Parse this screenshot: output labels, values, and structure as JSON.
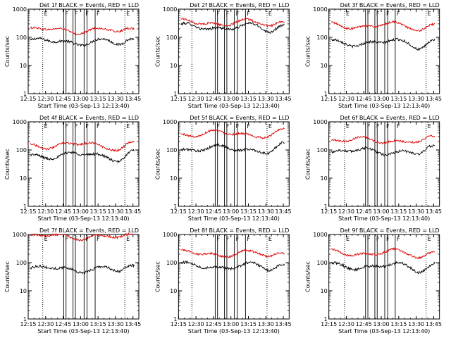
{
  "chart_data": [
    {
      "type": "line",
      "title": "Det 1f BLACK = Events, RED = LLD",
      "xlabel": "Start Time (03-Sep-13 12:13:40)",
      "ylabel": "Counts/sec",
      "yscale": "log",
      "ylim": [
        1,
        1000
      ],
      "xlim": [
        "12:15",
        "13:50"
      ],
      "x_ticks": [
        "12:15",
        "12:30",
        "12:45",
        "13:00",
        "13:15",
        "13:30",
        "13:45"
      ],
      "y_ticks": [
        "1",
        "10",
        "100",
        "1000"
      ],
      "series": [
        {
          "name": "Events",
          "color": "#000000",
          "level": 70
        },
        {
          "name": "LLD",
          "color": "#dd0000",
          "level": 180
        }
      ],
      "markers": [
        {
          "label": "E",
          "minute": 12.5,
          "style": "dotted"
        },
        {
          "label": "F",
          "minute": 30.5,
          "style": "solid"
        },
        {
          "label": "",
          "minute": 32.5,
          "style": "solid"
        },
        {
          "label": "F",
          "minute": 38.5,
          "style": "solid"
        },
        {
          "label": "",
          "minute": 40.5,
          "style": "solid"
        },
        {
          "label": "F",
          "minute": 48.0,
          "style": "solid"
        },
        {
          "label": "",
          "minute": 50.5,
          "style": "solid"
        },
        {
          "label": "F",
          "minute": 57.5,
          "style": "solid"
        },
        {
          "label": "E",
          "minute": 83.0,
          "style": "dotted"
        }
      ]
    },
    {
      "type": "line",
      "title": "Det 2f BLACK = Events, RED = LLD",
      "xlabel": "Start Time (03-Sep-13 12:13:40)",
      "ylabel": "Counts/sec",
      "yscale": "log",
      "ylim": [
        1,
        1000
      ],
      "xlim": [
        "12:15",
        "13:50"
      ],
      "x_ticks": [
        "12:15",
        "12:30",
        "12:45",
        "13:00",
        "13:15",
        "13:30",
        "13:45"
      ],
      "y_ticks": [
        "1",
        "10",
        "100",
        "1000"
      ],
      "series": [
        {
          "name": "Events",
          "color": "#000000",
          "level": 230
        },
        {
          "name": "LLD",
          "color": "#dd0000",
          "level": 330
        }
      ],
      "markers": [
        {
          "label": "",
          "minute": 11.5,
          "style": "dotted"
        },
        {
          "label": "F",
          "minute": 31.5,
          "style": "solid"
        },
        {
          "label": "",
          "minute": 33.5,
          "style": "solid"
        },
        {
          "label": "F",
          "minute": 39.5,
          "style": "solid"
        },
        {
          "label": "",
          "minute": 41.5,
          "style": "solid"
        },
        {
          "label": "F",
          "minute": 48.0,
          "style": "solid"
        },
        {
          "label": "",
          "minute": 50.5,
          "style": "solid"
        },
        {
          "label": "F",
          "minute": 57.5,
          "style": "solid"
        },
        {
          "label": "E",
          "minute": 76.0,
          "style": "dotted"
        }
      ]
    },
    {
      "type": "line",
      "title": "Det 3f BLACK = Events, RED = LLD",
      "xlabel": "Start Time (03-Sep-13 12:13:40)",
      "ylabel": "Counts/sec",
      "yscale": "log",
      "ylim": [
        1,
        1000
      ],
      "xlim": [
        "12:15",
        "13:50"
      ],
      "x_ticks": [
        "12:15",
        "12:30",
        "12:45",
        "13:00",
        "13:15",
        "13:30",
        "13:45"
      ],
      "y_ticks": [
        "1",
        "10",
        "100",
        "1000"
      ],
      "series": [
        {
          "name": "Events",
          "color": "#000000",
          "level": 65
        },
        {
          "name": "LLD",
          "color": "#dd0000",
          "level": 260
        }
      ],
      "markers": [
        {
          "label": "E",
          "minute": 13.5,
          "style": "dotted"
        },
        {
          "label": "F",
          "minute": 31.5,
          "style": "solid"
        },
        {
          "label": "",
          "minute": 33.5,
          "style": "solid"
        },
        {
          "label": "F",
          "minute": 39.5,
          "style": "solid"
        },
        {
          "label": "",
          "minute": 41.5,
          "style": "solid"
        },
        {
          "label": "F",
          "minute": 48.0,
          "style": "solid"
        },
        {
          "label": "",
          "minute": 50.5,
          "style": "solid"
        },
        {
          "label": "F",
          "minute": 57.0,
          "style": "solid"
        },
        {
          "label": "E",
          "minute": 83.5,
          "style": "dotted"
        }
      ]
    },
    {
      "type": "line",
      "title": "Det 4f BLACK = Events, RED = LLD",
      "xlabel": "Start Time (03-Sep-13 12:13:40)",
      "ylabel": "Counts/sec",
      "yscale": "log",
      "ylim": [
        1,
        1000
      ],
      "xlim": [
        "12:15",
        "13:50"
      ],
      "x_ticks": [
        "12:15",
        "12:30",
        "12:45",
        "13:00",
        "13:15",
        "13:30",
        "13:45"
      ],
      "y_ticks": [
        "1",
        "10",
        "100",
        "1000"
      ],
      "series": [
        {
          "name": "Events",
          "color": "#000000",
          "level": 65
        },
        {
          "name": "LLD",
          "color": "#dd0000",
          "level": 150
        }
      ],
      "markers": [
        {
          "label": "E",
          "minute": 12.5,
          "style": "dotted"
        },
        {
          "label": "F",
          "minute": 30.5,
          "style": "solid"
        },
        {
          "label": "",
          "minute": 32.5,
          "style": "solid"
        },
        {
          "label": "F",
          "minute": 38.5,
          "style": "solid"
        },
        {
          "label": "",
          "minute": 40.5,
          "style": "solid"
        },
        {
          "label": "F",
          "minute": 48.0,
          "style": "solid"
        },
        {
          "label": "",
          "minute": 50.5,
          "style": "solid"
        },
        {
          "label": "F",
          "minute": 57.5,
          "style": "solid"
        },
        {
          "label": "E",
          "minute": 83.0,
          "style": "dotted"
        }
      ]
    },
    {
      "type": "line",
      "title": "Det 5f BLACK = Events, RED = LLD",
      "xlabel": "Start Time (03-Sep-13 12:13:40)",
      "ylabel": "Counts/sec",
      "yscale": "log",
      "ylim": [
        1,
        1000
      ],
      "xlim": [
        "12:15",
        "13:50"
      ],
      "x_ticks": [
        "12:15",
        "12:30",
        "12:45",
        "13:00",
        "13:15",
        "13:30",
        "13:45"
      ],
      "y_ticks": [
        "1",
        "10",
        "100",
        "1000"
      ],
      "series": [
        {
          "name": "Events",
          "color": "#000000",
          "level": 110
        },
        {
          "name": "LLD",
          "color": "#dd0000",
          "level": 380
        }
      ],
      "markers": [
        {
          "label": "",
          "minute": 11.5,
          "style": "dotted"
        },
        {
          "label": "F",
          "minute": 31.5,
          "style": "solid"
        },
        {
          "label": "",
          "minute": 33.5,
          "style": "solid"
        },
        {
          "label": "F",
          "minute": 39.5,
          "style": "solid"
        },
        {
          "label": "",
          "minute": 41.5,
          "style": "solid"
        },
        {
          "label": "F",
          "minute": 48.0,
          "style": "solid"
        },
        {
          "label": "",
          "minute": 50.5,
          "style": "solid"
        },
        {
          "label": "F",
          "minute": 57.5,
          "style": "solid"
        },
        {
          "label": "E",
          "minute": 76.0,
          "style": "dotted"
        }
      ]
    },
    {
      "type": "line",
      "title": "Det 6f BLACK = Events, RED = LLD",
      "xlabel": "Start Time (03-Sep-13 12:13:40)",
      "ylabel": "Counts/sec",
      "yscale": "log",
      "ylim": [
        1,
        1000
      ],
      "xlim": [
        "12:15",
        "13:50"
      ],
      "x_ticks": [
        "12:15",
        "12:30",
        "12:45",
        "13:00",
        "13:15",
        "13:30",
        "13:45"
      ],
      "y_ticks": [
        "1",
        "10",
        "100",
        "1000"
      ],
      "series": [
        {
          "name": "Events",
          "color": "#000000",
          "level": 90
        },
        {
          "name": "LLD",
          "color": "#dd0000",
          "level": 220
        }
      ],
      "markers": [
        {
          "label": "E",
          "minute": 13.5,
          "style": "dotted"
        },
        {
          "label": "F",
          "minute": 31.5,
          "style": "solid"
        },
        {
          "label": "",
          "minute": 33.5,
          "style": "solid"
        },
        {
          "label": "F",
          "minute": 39.5,
          "style": "solid"
        },
        {
          "label": "",
          "minute": 41.5,
          "style": "solid"
        },
        {
          "label": "F",
          "minute": 48.0,
          "style": "solid"
        },
        {
          "label": "",
          "minute": 50.5,
          "style": "solid"
        },
        {
          "label": "F",
          "minute": 57.0,
          "style": "solid"
        },
        {
          "label": "E",
          "minute": 83.5,
          "style": "dotted"
        }
      ]
    },
    {
      "type": "line",
      "title": "Det 7f BLACK = Events, RED = LLD",
      "xlabel": "Start Time (03-Sep-13 12:13:40)",
      "ylabel": "Counts/sec",
      "yscale": "log",
      "ylim": [
        1,
        1000
      ],
      "xlim": [
        "12:15",
        "13:50"
      ],
      "x_ticks": [
        "12:15",
        "12:30",
        "12:45",
        "13:00",
        "13:15",
        "13:30",
        "13:45"
      ],
      "y_ticks": [
        "1",
        "10",
        "100",
        "1000"
      ],
      "series": [
        {
          "name": "Events",
          "color": "#000000",
          "level": 60
        },
        {
          "name": "LLD",
          "color": "#dd0000",
          "level": 850
        }
      ],
      "markers": [
        {
          "label": "E",
          "minute": 12.5,
          "style": "dotted"
        },
        {
          "label": "F",
          "minute": 30.5,
          "style": "solid"
        },
        {
          "label": "",
          "minute": 32.5,
          "style": "solid"
        },
        {
          "label": "F",
          "minute": 38.5,
          "style": "solid"
        },
        {
          "label": "",
          "minute": 40.5,
          "style": "solid"
        },
        {
          "label": "F",
          "minute": 48.0,
          "style": "solid"
        },
        {
          "label": "",
          "minute": 50.5,
          "style": "solid"
        },
        {
          "label": "F",
          "minute": 57.5,
          "style": "solid"
        },
        {
          "label": "E",
          "minute": 83.0,
          "style": "dotted"
        }
      ]
    },
    {
      "type": "line",
      "title": "Det 8f BLACK = Events, RED = LLD",
      "xlabel": "Start Time (03-Sep-13 12:13:40)",
      "ylabel": "Counts/sec",
      "yscale": "log",
      "ylim": [
        1,
        1000
      ],
      "xlim": [
        "12:15",
        "13:50"
      ],
      "x_ticks": [
        "12:15",
        "12:30",
        "12:45",
        "13:00",
        "13:15",
        "13:30",
        "13:45"
      ],
      "y_ticks": [
        "1",
        "10",
        "100",
        "1000"
      ],
      "series": [
        {
          "name": "Events",
          "color": "#000000",
          "level": 75
        },
        {
          "name": "LLD",
          "color": "#dd0000",
          "level": 210
        }
      ],
      "markers": [
        {
          "label": "",
          "minute": 11.5,
          "style": "dotted"
        },
        {
          "label": "F",
          "minute": 31.5,
          "style": "solid"
        },
        {
          "label": "",
          "minute": 33.5,
          "style": "solid"
        },
        {
          "label": "F",
          "minute": 39.5,
          "style": "solid"
        },
        {
          "label": "",
          "minute": 41.5,
          "style": "solid"
        },
        {
          "label": "F",
          "minute": 48.0,
          "style": "solid"
        },
        {
          "label": "",
          "minute": 50.5,
          "style": "solid"
        },
        {
          "label": "F",
          "minute": 57.5,
          "style": "solid"
        },
        {
          "label": "E",
          "minute": 76.0,
          "style": "dotted"
        }
      ]
    },
    {
      "type": "line",
      "title": "Det 9f BLACK = Events, RED = LLD",
      "xlabel": "Start Time (03-Sep-13 12:13:40)",
      "ylabel": "Counts/sec",
      "yscale": "log",
      "ylim": [
        1,
        1000
      ],
      "xlim": [
        "12:15",
        "13:50"
      ],
      "x_ticks": [
        "12:15",
        "12:30",
        "12:45",
        "13:00",
        "13:15",
        "13:30",
        "13:45"
      ],
      "y_ticks": [
        "1",
        "10",
        "100",
        "1000"
      ],
      "series": [
        {
          "name": "Events",
          "color": "#000000",
          "level": 75
        },
        {
          "name": "LLD",
          "color": "#dd0000",
          "level": 220
        }
      ],
      "markers": [
        {
          "label": "E",
          "minute": 13.5,
          "style": "dotted"
        },
        {
          "label": "F",
          "minute": 31.5,
          "style": "solid"
        },
        {
          "label": "",
          "minute": 33.5,
          "style": "solid"
        },
        {
          "label": "F",
          "minute": 39.5,
          "style": "solid"
        },
        {
          "label": "",
          "minute": 41.5,
          "style": "solid"
        },
        {
          "label": "F",
          "minute": 48.0,
          "style": "solid"
        },
        {
          "label": "",
          "minute": 50.5,
          "style": "solid"
        },
        {
          "label": "F",
          "minute": 57.0,
          "style": "solid"
        },
        {
          "label": "E",
          "minute": 83.5,
          "style": "dotted"
        }
      ]
    }
  ]
}
